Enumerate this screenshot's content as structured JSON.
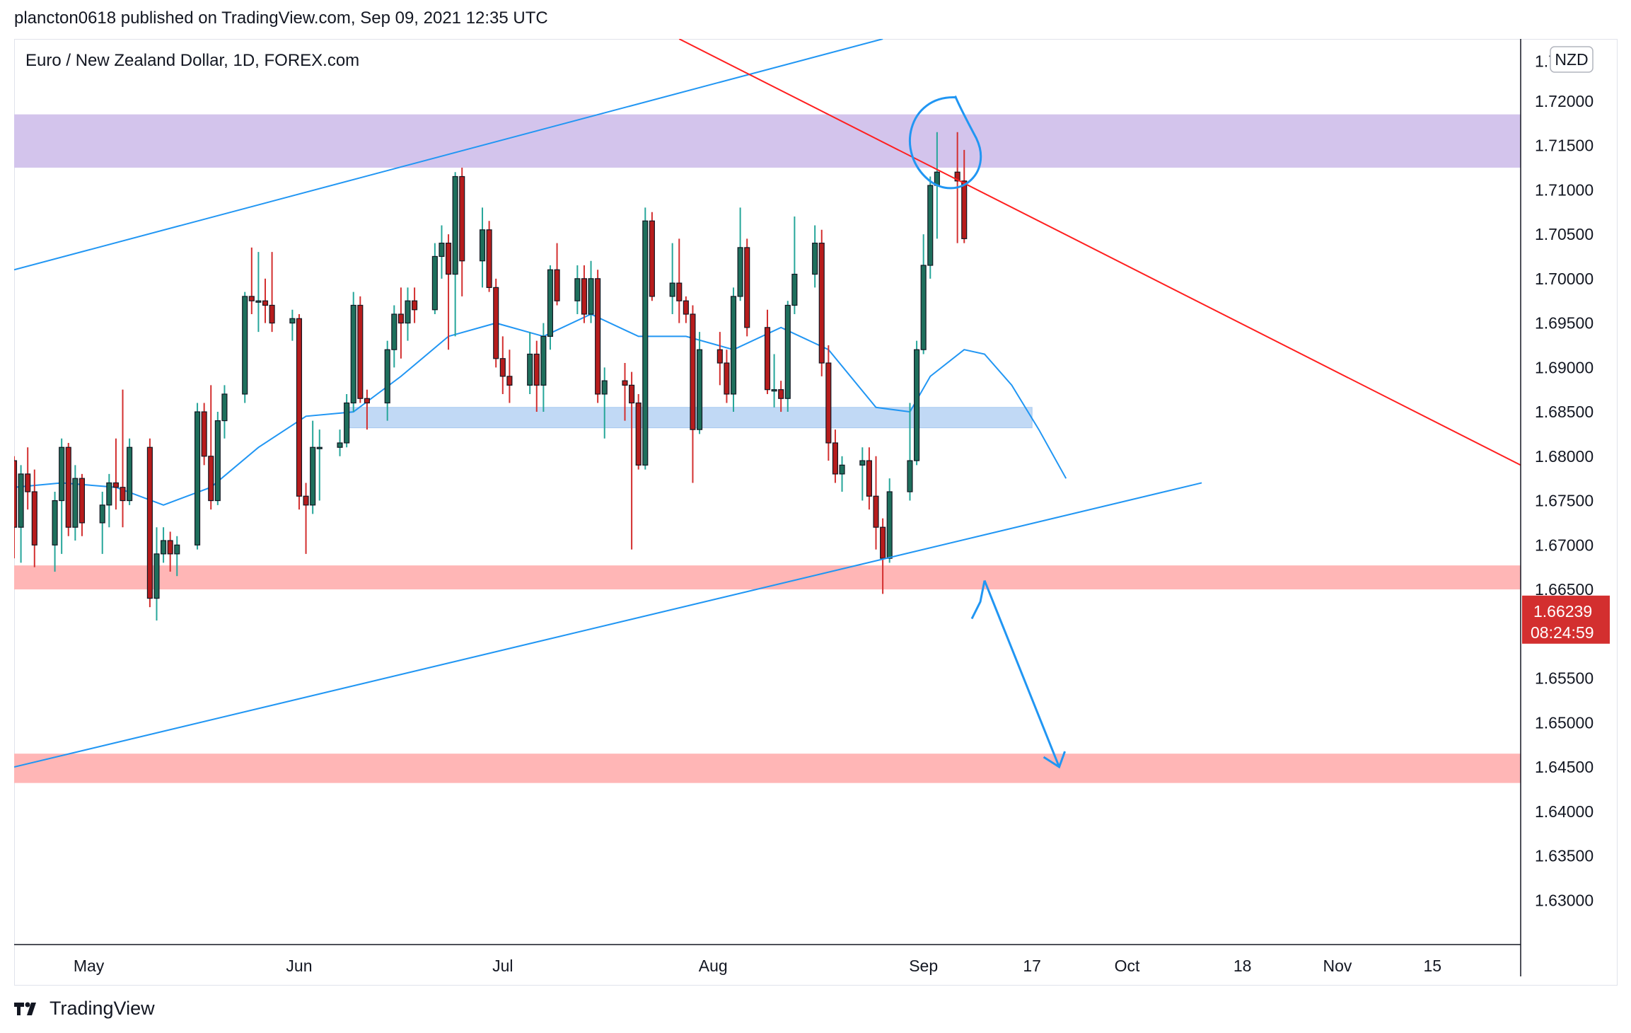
{
  "header": {
    "published_line": "plancton0618 published on TradingView.com, Sep 09, 2021 12:35 UTC"
  },
  "footer": {
    "brand": "TradingView"
  },
  "colors": {
    "bull": "#26a69a",
    "bull_body": "#1e6f5c",
    "bear": "#d32f2f",
    "bear_body": "#b71c1c",
    "ma": "#2196f3",
    "trend_blue": "#2196f3",
    "trend_red": "#ff1f1f",
    "zone_purple": "#d3c4ec",
    "zone_pink": "#ffb6b6",
    "zone_blue": "#bbd5f5",
    "price_tag": "#d32f2f"
  },
  "chart_data": {
    "type": "candlestick",
    "title": "Euro / New Zealand Dollar, 1D, FOREX.com",
    "currency_badge": "NZD",
    "y_range": [
      1.625,
      1.727
    ],
    "y_ticks": [
      "1.72000",
      "1.71500",
      "1.71000",
      "1.70500",
      "1.70000",
      "1.69500",
      "1.69000",
      "1.68500",
      "1.68000",
      "1.67500",
      "1.67000",
      "1.66500",
      "1.66000",
      "1.65500",
      "1.65000",
      "1.64500",
      "1.64000",
      "1.63500",
      "1.63000"
    ],
    "top_tick_partial": "1.7",
    "x_axis_start": "2021-04-20",
    "x_axis_end": "2021-11-28",
    "x_ticks": [
      {
        "label": "May",
        "date": "2021-05-01"
      },
      {
        "label": "Jun",
        "date": "2021-06-01"
      },
      {
        "label": "Jul",
        "date": "2021-07-01"
      },
      {
        "label": "Aug",
        "date": "2021-08-01"
      },
      {
        "label": "Sep",
        "date": "2021-09-01"
      },
      {
        "label": "17",
        "date": "2021-09-17"
      },
      {
        "label": "Oct",
        "date": "2021-10-01"
      },
      {
        "label": "18",
        "date": "2021-10-18"
      },
      {
        "label": "Nov",
        "date": "2021-11-01"
      },
      {
        "label": "15",
        "date": "2021-11-15"
      }
    ],
    "last_price": "1.66239",
    "countdown": "08:24:59",
    "candles": [
      {
        "d": "2021-04-20",
        "o": 1.6795,
        "h": 1.68,
        "l": 1.6685,
        "c": 1.672
      },
      {
        "d": "2021-04-21",
        "o": 1.672,
        "h": 1.679,
        "l": 1.668,
        "c": 1.678
      },
      {
        "d": "2021-04-22",
        "o": 1.678,
        "h": 1.681,
        "l": 1.674,
        "c": 1.676
      },
      {
        "d": "2021-04-23",
        "o": 1.676,
        "h": 1.6785,
        "l": 1.6675,
        "c": 1.67
      },
      {
        "d": "2021-04-26",
        "o": 1.67,
        "h": 1.676,
        "l": 1.667,
        "c": 1.675
      },
      {
        "d": "2021-04-27",
        "o": 1.675,
        "h": 1.682,
        "l": 1.669,
        "c": 1.681
      },
      {
        "d": "2021-04-28",
        "o": 1.681,
        "h": 1.6815,
        "l": 1.671,
        "c": 1.672
      },
      {
        "d": "2021-04-29",
        "o": 1.672,
        "h": 1.679,
        "l": 1.6705,
        "c": 1.6775
      },
      {
        "d": "2021-04-30",
        "o": 1.6775,
        "h": 1.678,
        "l": 1.671,
        "c": 1.6725
      },
      {
        "d": "2021-05-03",
        "o": 1.6725,
        "h": 1.676,
        "l": 1.669,
        "c": 1.6745
      },
      {
        "d": "2021-05-04",
        "o": 1.6745,
        "h": 1.678,
        "l": 1.672,
        "c": 1.677
      },
      {
        "d": "2021-05-05",
        "o": 1.677,
        "h": 1.682,
        "l": 1.674,
        "c": 1.6765
      },
      {
        "d": "2021-05-06",
        "o": 1.6765,
        "h": 1.6875,
        "l": 1.672,
        "c": 1.675
      },
      {
        "d": "2021-05-07",
        "o": 1.675,
        "h": 1.682,
        "l": 1.6745,
        "c": 1.681
      },
      {
        "d": "2021-05-10",
        "o": 1.681,
        "h": 1.682,
        "l": 1.663,
        "c": 1.664
      },
      {
        "d": "2021-05-11",
        "o": 1.664,
        "h": 1.672,
        "l": 1.6615,
        "c": 1.669
      },
      {
        "d": "2021-05-12",
        "o": 1.669,
        "h": 1.672,
        "l": 1.668,
        "c": 1.6705
      },
      {
        "d": "2021-05-13",
        "o": 1.6705,
        "h": 1.6715,
        "l": 1.667,
        "c": 1.669
      },
      {
        "d": "2021-05-14",
        "o": 1.669,
        "h": 1.671,
        "l": 1.6665,
        "c": 1.67
      },
      {
        "d": "2021-05-17",
        "o": 1.67,
        "h": 1.686,
        "l": 1.6695,
        "c": 1.685
      },
      {
        "d": "2021-05-18",
        "o": 1.685,
        "h": 1.686,
        "l": 1.679,
        "c": 1.68
      },
      {
        "d": "2021-05-19",
        "o": 1.68,
        "h": 1.688,
        "l": 1.674,
        "c": 1.675
      },
      {
        "d": "2021-05-20",
        "o": 1.675,
        "h": 1.685,
        "l": 1.6745,
        "c": 1.684
      },
      {
        "d": "2021-05-21",
        "o": 1.684,
        "h": 1.688,
        "l": 1.682,
        "c": 1.687
      },
      {
        "d": "2021-05-24",
        "o": 1.687,
        "h": 1.6985,
        "l": 1.686,
        "c": 1.698
      },
      {
        "d": "2021-05-25",
        "o": 1.698,
        "h": 1.7035,
        "l": 1.696,
        "c": 1.6975
      },
      {
        "d": "2021-05-26",
        "o": 1.6975,
        "h": 1.703,
        "l": 1.694,
        "c": 1.6975
      },
      {
        "d": "2021-05-27",
        "o": 1.6975,
        "h": 1.7,
        "l": 1.695,
        "c": 1.697
      },
      {
        "d": "2021-05-28",
        "o": 1.697,
        "h": 1.703,
        "l": 1.694,
        "c": 1.695
      },
      {
        "d": "2021-05-31",
        "o": 1.695,
        "h": 1.6965,
        "l": 1.693,
        "c": 1.6955
      },
      {
        "d": "2021-06-01",
        "o": 1.6955,
        "h": 1.696,
        "l": 1.674,
        "c": 1.6755
      },
      {
        "d": "2021-06-02",
        "o": 1.6755,
        "h": 1.677,
        "l": 1.669,
        "c": 1.6745
      },
      {
        "d": "2021-06-03",
        "o": 1.6745,
        "h": 1.684,
        "l": 1.6735,
        "c": 1.681
      },
      {
        "d": "2021-06-04",
        "o": 1.681,
        "h": 1.683,
        "l": 1.675,
        "c": 1.681
      },
      {
        "d": "2021-06-07",
        "o": 1.681,
        "h": 1.683,
        "l": 1.68,
        "c": 1.6815
      },
      {
        "d": "2021-06-08",
        "o": 1.6815,
        "h": 1.687,
        "l": 1.681,
        "c": 1.686
      },
      {
        "d": "2021-06-09",
        "o": 1.686,
        "h": 1.6985,
        "l": 1.685,
        "c": 1.697
      },
      {
        "d": "2021-06-10",
        "o": 1.697,
        "h": 1.698,
        "l": 1.686,
        "c": 1.6865
      },
      {
        "d": "2021-06-11",
        "o": 1.6865,
        "h": 1.6875,
        "l": 1.683,
        "c": 1.686
      },
      {
        "d": "2021-06-14",
        "o": 1.686,
        "h": 1.693,
        "l": 1.684,
        "c": 1.692
      },
      {
        "d": "2021-06-15",
        "o": 1.692,
        "h": 1.697,
        "l": 1.69,
        "c": 1.696
      },
      {
        "d": "2021-06-16",
        "o": 1.696,
        "h": 1.699,
        "l": 1.691,
        "c": 1.695
      },
      {
        "d": "2021-06-17",
        "o": 1.695,
        "h": 1.699,
        "l": 1.693,
        "c": 1.6975
      },
      {
        "d": "2021-06-18",
        "o": 1.6975,
        "h": 1.699,
        "l": 1.695,
        "c": 1.6965
      },
      {
        "d": "2021-06-21",
        "o": 1.6965,
        "h": 1.704,
        "l": 1.696,
        "c": 1.7025
      },
      {
        "d": "2021-06-22",
        "o": 1.7025,
        "h": 1.706,
        "l": 1.7,
        "c": 1.704
      },
      {
        "d": "2021-06-23",
        "o": 1.704,
        "h": 1.705,
        "l": 1.692,
        "c": 1.7005
      },
      {
        "d": "2021-06-24",
        "o": 1.7005,
        "h": 1.712,
        "l": 1.6935,
        "c": 1.7115
      },
      {
        "d": "2021-06-25",
        "o": 1.7115,
        "h": 1.7125,
        "l": 1.698,
        "c": 1.702
      },
      {
        "d": "2021-06-28",
        "o": 1.702,
        "h": 1.708,
        "l": 1.699,
        "c": 1.7055
      },
      {
        "d": "2021-06-29",
        "o": 1.7055,
        "h": 1.7065,
        "l": 1.6985,
        "c": 1.699
      },
      {
        "d": "2021-06-30",
        "o": 1.699,
        "h": 1.7,
        "l": 1.69,
        "c": 1.691
      },
      {
        "d": "2021-07-01",
        "o": 1.691,
        "h": 1.6935,
        "l": 1.687,
        "c": 1.689
      },
      {
        "d": "2021-07-02",
        "o": 1.689,
        "h": 1.692,
        "l": 1.686,
        "c": 1.688
      },
      {
        "d": "2021-07-05",
        "o": 1.688,
        "h": 1.694,
        "l": 1.687,
        "c": 1.6915
      },
      {
        "d": "2021-07-06",
        "o": 1.6915,
        "h": 1.693,
        "l": 1.685,
        "c": 1.688
      },
      {
        "d": "2021-07-07",
        "o": 1.688,
        "h": 1.695,
        "l": 1.685,
        "c": 1.6935
      },
      {
        "d": "2021-07-08",
        "o": 1.6935,
        "h": 1.7015,
        "l": 1.692,
        "c": 1.701
      },
      {
        "d": "2021-07-09",
        "o": 1.701,
        "h": 1.704,
        "l": 1.697,
        "c": 1.6975
      },
      {
        "d": "2021-07-12",
        "o": 1.6975,
        "h": 1.7015,
        "l": 1.696,
        "c": 1.7
      },
      {
        "d": "2021-07-13",
        "o": 1.7,
        "h": 1.7015,
        "l": 1.695,
        "c": 1.696
      },
      {
        "d": "2021-07-14",
        "o": 1.696,
        "h": 1.702,
        "l": 1.695,
        "c": 1.7
      },
      {
        "d": "2021-07-15",
        "o": 1.7,
        "h": 1.701,
        "l": 1.686,
        "c": 1.687
      },
      {
        "d": "2021-07-16",
        "o": 1.687,
        "h": 1.69,
        "l": 1.682,
        "c": 1.6885
      },
      {
        "d": "2021-07-19",
        "o": 1.6885,
        "h": 1.6905,
        "l": 1.684,
        "c": 1.688
      },
      {
        "d": "2021-07-20",
        "o": 1.688,
        "h": 1.6895,
        "l": 1.6695,
        "c": 1.686
      },
      {
        "d": "2021-07-21",
        "o": 1.686,
        "h": 1.687,
        "l": 1.6785,
        "c": 1.679
      },
      {
        "d": "2021-07-22",
        "o": 1.679,
        "h": 1.708,
        "l": 1.6785,
        "c": 1.7065
      },
      {
        "d": "2021-07-23",
        "o": 1.7065,
        "h": 1.7075,
        "l": 1.6975,
        "c": 1.698
      },
      {
        "d": "2021-07-26",
        "o": 1.698,
        "h": 1.704,
        "l": 1.696,
        "c": 1.6995
      },
      {
        "d": "2021-07-27",
        "o": 1.6995,
        "h": 1.7045,
        "l": 1.695,
        "c": 1.6975
      },
      {
        "d": "2021-07-28",
        "o": 1.6975,
        "h": 1.698,
        "l": 1.695,
        "c": 1.696
      },
      {
        "d": "2021-07-29",
        "o": 1.696,
        "h": 1.697,
        "l": 1.677,
        "c": 1.683
      },
      {
        "d": "2021-07-30",
        "o": 1.683,
        "h": 1.694,
        "l": 1.6825,
        "c": 1.692
      },
      {
        "d": "2021-08-02",
        "o": 1.692,
        "h": 1.694,
        "l": 1.688,
        "c": 1.6905
      },
      {
        "d": "2021-08-03",
        "o": 1.6905,
        "h": 1.692,
        "l": 1.686,
        "c": 1.687
      },
      {
        "d": "2021-08-04",
        "o": 1.687,
        "h": 1.699,
        "l": 1.685,
        "c": 1.698
      },
      {
        "d": "2021-08-05",
        "o": 1.698,
        "h": 1.708,
        "l": 1.6975,
        "c": 1.7035
      },
      {
        "d": "2021-08-06",
        "o": 1.7035,
        "h": 1.7045,
        "l": 1.6935,
        "c": 1.6945
      },
      {
        "d": "2021-08-09",
        "o": 1.6945,
        "h": 1.6965,
        "l": 1.687,
        "c": 1.6875
      },
      {
        "d": "2021-08-10",
        "o": 1.6875,
        "h": 1.6915,
        "l": 1.6855,
        "c": 1.6875
      },
      {
        "d": "2021-08-11",
        "o": 1.6875,
        "h": 1.6885,
        "l": 1.685,
        "c": 1.6865
      },
      {
        "d": "2021-08-12",
        "o": 1.6865,
        "h": 1.6975,
        "l": 1.685,
        "c": 1.697
      },
      {
        "d": "2021-08-13",
        "o": 1.697,
        "h": 1.707,
        "l": 1.696,
        "c": 1.7005
      },
      {
        "d": "2021-08-16",
        "o": 1.7005,
        "h": 1.706,
        "l": 1.699,
        "c": 1.704
      },
      {
        "d": "2021-08-17",
        "o": 1.704,
        "h": 1.7055,
        "l": 1.689,
        "c": 1.6905
      },
      {
        "d": "2021-08-18",
        "o": 1.6905,
        "h": 1.6925,
        "l": 1.6795,
        "c": 1.6815
      },
      {
        "d": "2021-08-19",
        "o": 1.6815,
        "h": 1.683,
        "l": 1.677,
        "c": 1.678
      },
      {
        "d": "2021-08-20",
        "o": 1.678,
        "h": 1.68,
        "l": 1.676,
        "c": 1.679
      },
      {
        "d": "2021-08-23",
        "o": 1.679,
        "h": 1.681,
        "l": 1.675,
        "c": 1.6795
      },
      {
        "d": "2021-08-24",
        "o": 1.6795,
        "h": 1.681,
        "l": 1.674,
        "c": 1.6755
      },
      {
        "d": "2021-08-25",
        "o": 1.6755,
        "h": 1.68,
        "l": 1.6695,
        "c": 1.672
      },
      {
        "d": "2021-08-26",
        "o": 1.672,
        "h": 1.673,
        "l": 1.6645,
        "c": 1.6685
      },
      {
        "d": "2021-08-27",
        "o": 1.6685,
        "h": 1.6775,
        "l": 1.668,
        "c": 1.676
      },
      {
        "d": "2021-08-30",
        "o": 1.676,
        "h": 1.686,
        "l": 1.675,
        "c": 1.6795
      },
      {
        "d": "2021-08-31",
        "o": 1.6795,
        "h": 1.693,
        "l": 1.679,
        "c": 1.692
      },
      {
        "d": "2021-09-01",
        "o": 1.692,
        "h": 1.705,
        "l": 1.6915,
        "c": 1.7015
      },
      {
        "d": "2021-09-02",
        "o": 1.7015,
        "h": 1.7115,
        "l": 1.7,
        "c": 1.7105
      },
      {
        "d": "2021-09-03",
        "o": 1.7105,
        "h": 1.7165,
        "l": 1.7045,
        "c": 1.712
      },
      {
        "d": "2021-09-06",
        "o": 1.712,
        "h": 1.7165,
        "l": 1.704,
        "c": 1.711
      },
      {
        "d": "2021-09-07",
        "o": 1.711,
        "h": 1.7145,
        "l": 1.704,
        "c": 1.7045
      }
    ],
    "ma_line": [
      {
        "d": "2021-04-20",
        "v": 1.6765
      },
      {
        "d": "2021-04-27",
        "v": 1.677
      },
      {
        "d": "2021-05-05",
        "v": 1.6765
      },
      {
        "d": "2021-05-12",
        "v": 1.6745
      },
      {
        "d": "2021-05-19",
        "v": 1.6765
      },
      {
        "d": "2021-05-26",
        "v": 1.681
      },
      {
        "d": "2021-06-02",
        "v": 1.6845
      },
      {
        "d": "2021-06-09",
        "v": 1.685
      },
      {
        "d": "2021-06-16",
        "v": 1.689
      },
      {
        "d": "2021-06-23",
        "v": 1.6935
      },
      {
        "d": "2021-06-30",
        "v": 1.695
      },
      {
        "d": "2021-07-07",
        "v": 1.6935
      },
      {
        "d": "2021-07-14",
        "v": 1.696
      },
      {
        "d": "2021-07-21",
        "v": 1.6935
      },
      {
        "d": "2021-07-28",
        "v": 1.6935
      },
      {
        "d": "2021-08-04",
        "v": 1.692
      },
      {
        "d": "2021-08-11",
        "v": 1.6945
      },
      {
        "d": "2021-08-18",
        "v": 1.692
      },
      {
        "d": "2021-08-25",
        "v": 1.6855
      },
      {
        "d": "2021-08-30",
        "v": 1.685
      },
      {
        "d": "2021-09-02",
        "v": 1.689
      },
      {
        "d": "2021-09-07",
        "v": 1.692
      },
      {
        "d": "2021-09-10",
        "v": 1.6915
      },
      {
        "d": "2021-09-14",
        "v": 1.688
      },
      {
        "d": "2021-09-18",
        "v": 1.683
      },
      {
        "d": "2021-09-22",
        "v": 1.6775
      }
    ],
    "zones": [
      {
        "name": "resistance-zone",
        "color": "purple",
        "y1": 1.7125,
        "y2": 1.7185,
        "d1": "2021-04-20",
        "d2": "2021-11-28"
      },
      {
        "name": "support-zone-upper",
        "color": "pink",
        "y1": 1.665,
        "y2": 1.6677,
        "d1": "2021-04-20",
        "d2": "2021-11-28"
      },
      {
        "name": "support-zone-lower",
        "color": "pink",
        "y1": 1.6432,
        "y2": 1.6465,
        "d1": "2021-04-20",
        "d2": "2021-11-28"
      },
      {
        "name": "demand-zone-blue",
        "color": "blue",
        "y1": 1.6832,
        "y2": 1.6855,
        "d1": "2021-06-08",
        "d2": "2021-09-17"
      }
    ],
    "trend_lines": [
      {
        "name": "channel-upper-line",
        "color": "blue",
        "d1": "2021-04-20",
        "v1": 1.701,
        "d2": "2021-08-26",
        "v2": 1.727
      },
      {
        "name": "channel-lower-line",
        "color": "blue",
        "d1": "2021-04-20",
        "v1": 1.645,
        "d2": "2021-10-12",
        "v2": 1.677
      },
      {
        "name": "descending-resistance-line",
        "color": "red",
        "d1": "2021-07-27",
        "v1": 1.727,
        "d2": "2021-11-28",
        "v2": 1.679
      }
    ],
    "projection_arrow": {
      "d1": "2021-09-10",
      "v1": 1.666,
      "d2": "2021-09-21",
      "v2": 1.645
    },
    "highlight_circle": {
      "d": "2021-09-04",
      "v": 1.715
    }
  }
}
